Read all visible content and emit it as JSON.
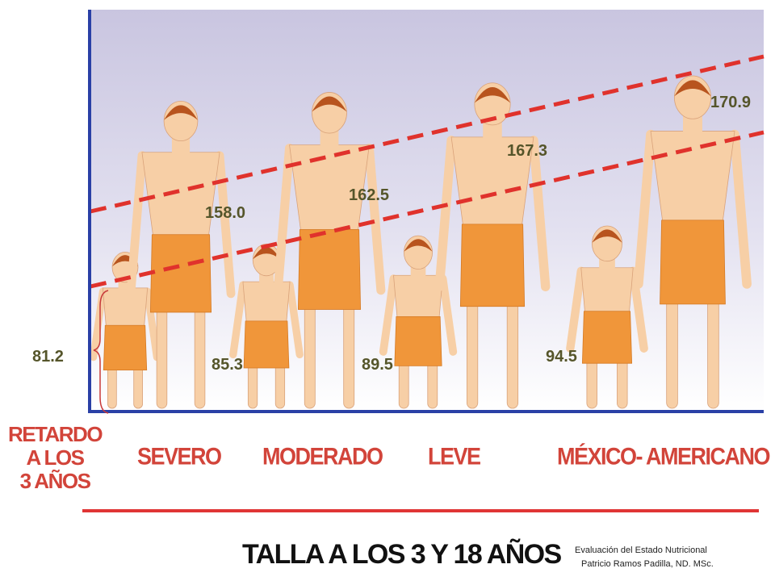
{
  "chart_data": {
    "type": "bar",
    "title": "TALLA A LOS 3 Y 18 AÑOS",
    "categories": [
      "SEVERO",
      "MODERADO",
      "LEVE",
      "MÉXICO- AMERICANO"
    ],
    "series": [
      {
        "values": [
          81.2,
          85.3,
          89.5,
          94.5
        ]
      },
      {
        "values": [
          158.0,
          162.5,
          167.3,
          170.9
        ]
      }
    ],
    "value_labels_age3": [
      "81.2",
      "85.3",
      "89.5",
      "94.5"
    ],
    "value_labels_age18": [
      "158.0",
      "162.5",
      "167.3",
      "170.9"
    ],
    "baseline_label": [
      "RETARDO",
      "A LOS",
      "3 AÑOS"
    ],
    "trend_lines": "dashed",
    "colors": {
      "trend_line": "#e0322c",
      "axis": "#2a40a6",
      "plot_bg_top": "#c9c5e0",
      "plot_bg_bottom": "#ffffff",
      "label_text": "#d2443a",
      "value_text": "#55552a",
      "shorts": "#f0963a",
      "skin": "#f7cfa6",
      "hair": "#b8541e"
    }
  },
  "footer": {
    "credit_line1": "Evaluación del Estado Nutricional",
    "credit_line2": "Patricio Ramos Padilla, ND. MSc."
  }
}
